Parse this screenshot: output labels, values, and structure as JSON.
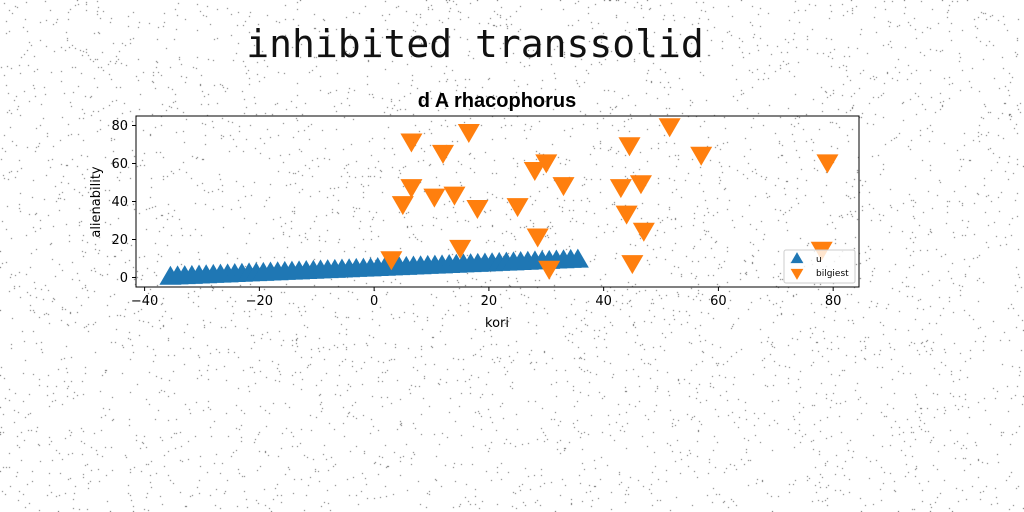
{
  "headline": "inhibited transsolid",
  "chart_data": {
    "type": "scatter",
    "title": "d A rhacophorus",
    "xlabel": "kori",
    "ylabel": "alienability",
    "xlim": [
      -41.5,
      84.5
    ],
    "ylim": [
      -5,
      85
    ],
    "xticks": [
      -40,
      -20,
      0,
      20,
      40,
      60,
      80
    ],
    "yticks": [
      0,
      20,
      40,
      60,
      80
    ],
    "xtick_labels": [
      "−40",
      "−20",
      "0",
      "20",
      "40",
      "60",
      "80"
    ],
    "ytick_labels": [
      "0",
      "20",
      "40",
      "60",
      "80"
    ],
    "grid": false,
    "legend_position": "lower-right",
    "series": [
      {
        "name": "u",
        "marker": "triangle-up",
        "color": "#1f77b4",
        "linear": {
          "x_start": -35.5,
          "x_end": 35.5,
          "count": 58,
          "y_start": 0,
          "y_end": 9
        }
      },
      {
        "name": "bilgiest",
        "marker": "triangle-down",
        "color": "#ff7f0e",
        "points": [
          [
            3,
            10
          ],
          [
            5,
            39
          ],
          [
            6.5,
            72
          ],
          [
            6.5,
            48
          ],
          [
            10.5,
            43
          ],
          [
            12,
            66
          ],
          [
            14,
            44
          ],
          [
            15,
            16
          ],
          [
            16.5,
            77
          ],
          [
            18,
            37
          ],
          [
            25,
            38
          ],
          [
            28,
            57
          ],
          [
            28.5,
            22
          ],
          [
            30,
            61
          ],
          [
            30.5,
            5
          ],
          [
            33,
            49
          ],
          [
            43,
            48
          ],
          [
            44,
            34
          ],
          [
            44.5,
            70
          ],
          [
            45,
            8
          ],
          [
            46.5,
            50
          ],
          [
            47,
            25
          ],
          [
            51.5,
            80
          ],
          [
            57,
            65
          ],
          [
            78,
            15
          ],
          [
            79,
            61
          ]
        ]
      }
    ]
  }
}
